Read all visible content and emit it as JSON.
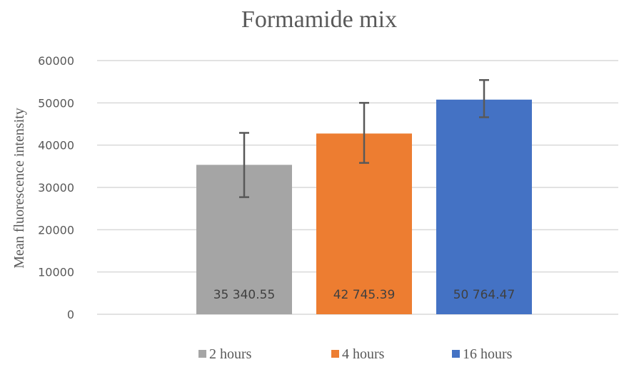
{
  "chart_data": {
    "type": "bar",
    "title": "Formamide mix",
    "xlabel": "",
    "ylabel": "Mean fluorescence  intensity",
    "ylim": [
      0,
      60000
    ],
    "yticks": [
      0,
      10000,
      20000,
      30000,
      40000,
      50000,
      60000
    ],
    "ytick_labels": [
      "0",
      "10000",
      "20000",
      "30000",
      "40000",
      "50000",
      "60000"
    ],
    "grid": true,
    "legend_position": "bottom",
    "series": [
      {
        "name": "2 hours",
        "value": 35340.55,
        "label": "35 340.55",
        "error_low": 27700,
        "error_high": 42900,
        "color": "#a5a5a5"
      },
      {
        "name": "4 hours",
        "value": 42745.39,
        "label": "42 745.39",
        "error_low": 35800,
        "error_high": 50000,
        "color": "#ed7d31"
      },
      {
        "name": "16 hours",
        "value": 50764.47,
        "label": "50 764.47",
        "error_low": 46600,
        "error_high": 55400,
        "color": "#4472c4"
      }
    ]
  }
}
